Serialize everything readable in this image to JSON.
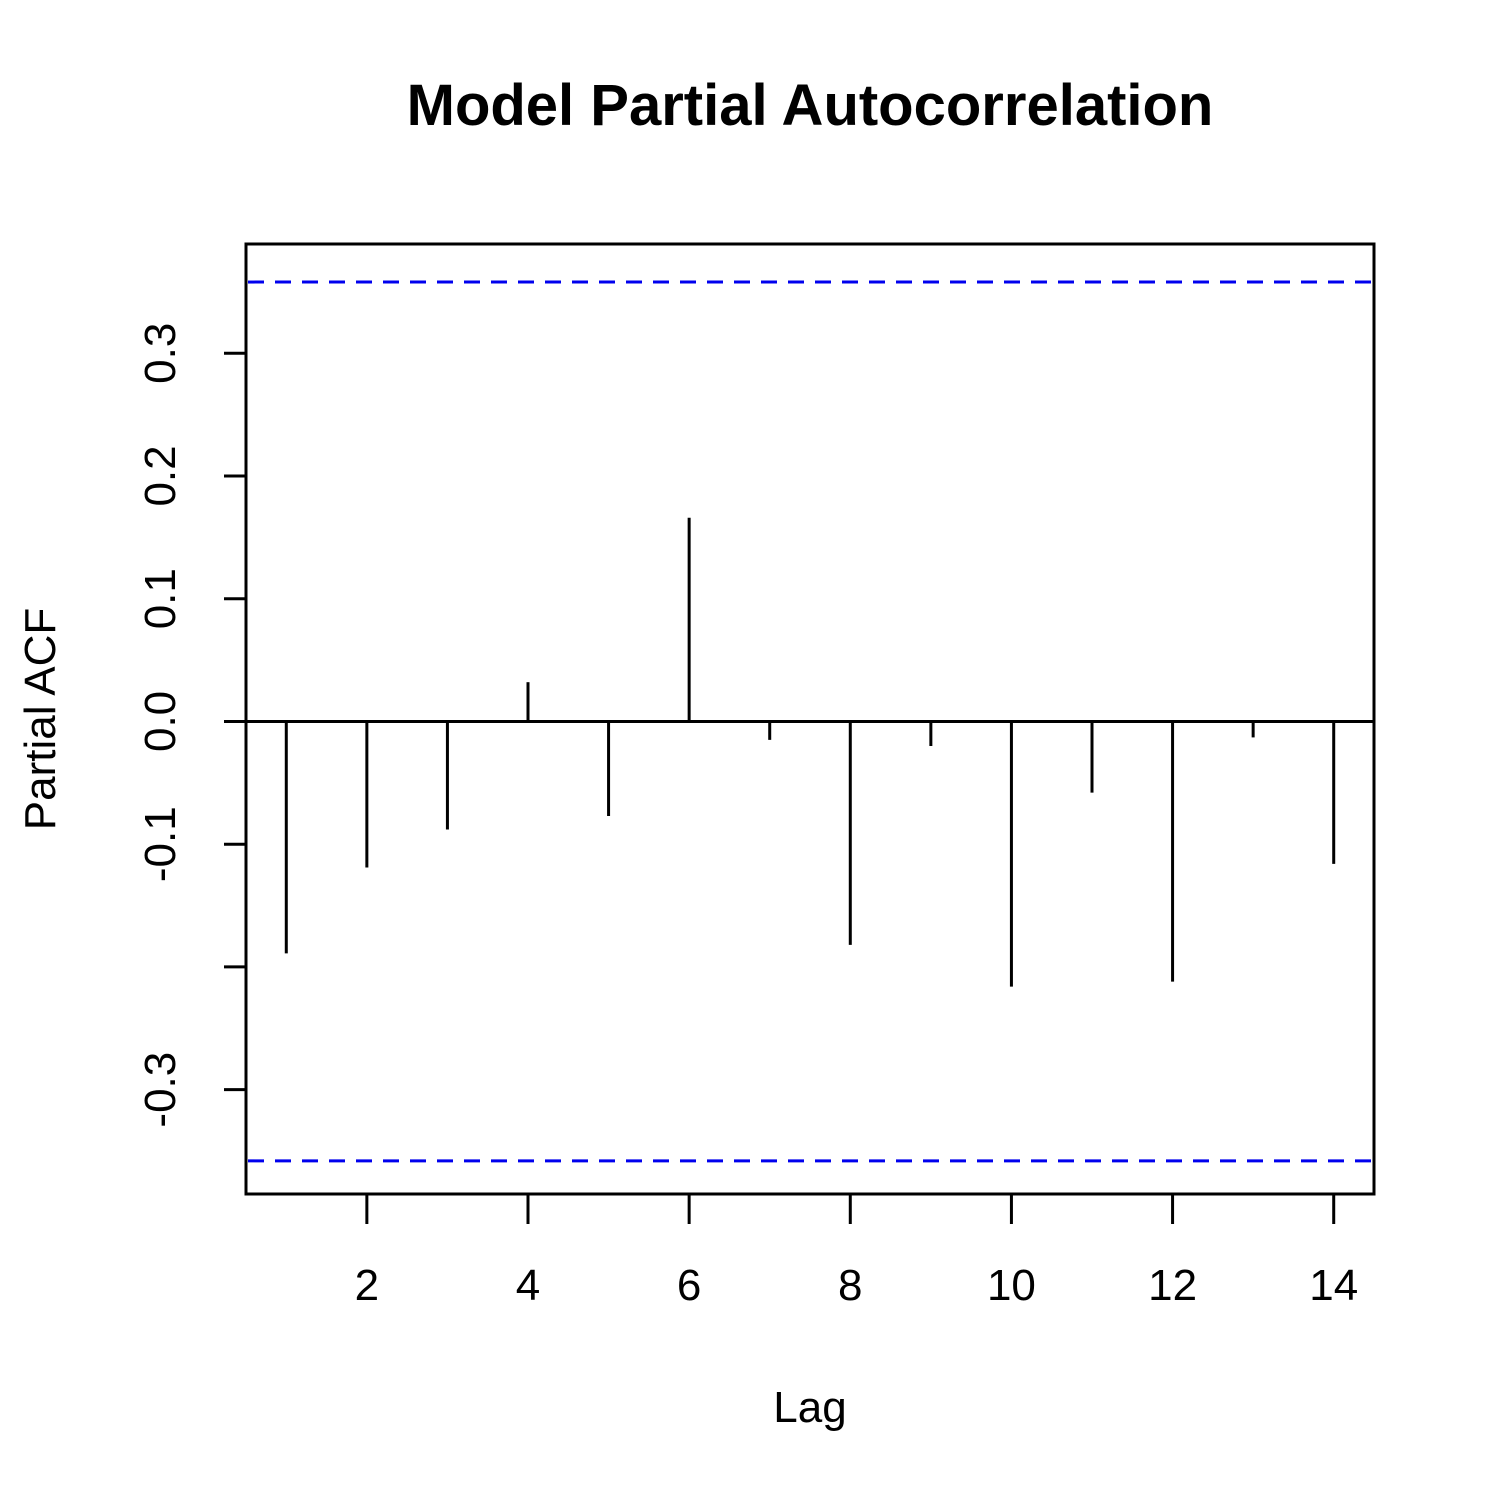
{
  "chart_data": {
    "type": "bar",
    "style": "acf-spikes",
    "title": "Model Partial Autocorrelation",
    "xlabel": "Lag",
    "ylabel": "Partial ACF",
    "xlim": [
      0.5,
      14.5
    ],
    "ylim": [
      -0.385,
      0.389
    ],
    "x_ticks": [
      2,
      4,
      6,
      8,
      10,
      12,
      14
    ],
    "x_tick_labels": [
      "2",
      "4",
      "6",
      "8",
      "10",
      "12",
      "14"
    ],
    "y_ticks": [
      -0.3,
      -0.2,
      -0.1,
      0.0,
      0.1,
      0.2,
      0.3
    ],
    "y_tick_labels": [
      "-0.3",
      "",
      "-0.1",
      "0.0",
      "0.1",
      "0.2",
      "0.3"
    ],
    "lags": [
      1,
      2,
      3,
      4,
      5,
      6,
      7,
      8,
      9,
      10,
      11,
      12,
      13,
      14
    ],
    "values": [
      -0.189,
      -0.119,
      -0.088,
      0.032,
      -0.077,
      0.166,
      -0.015,
      -0.182,
      -0.02,
      -0.216,
      -0.058,
      -0.212,
      -0.013,
      -0.116
    ],
    "confidence_bound": 0.358,
    "colors": {
      "bars": "#000000",
      "confidence_lines": "#0000ee",
      "zero_line": "#000000",
      "frame": "#000000"
    },
    "grid": false
  }
}
